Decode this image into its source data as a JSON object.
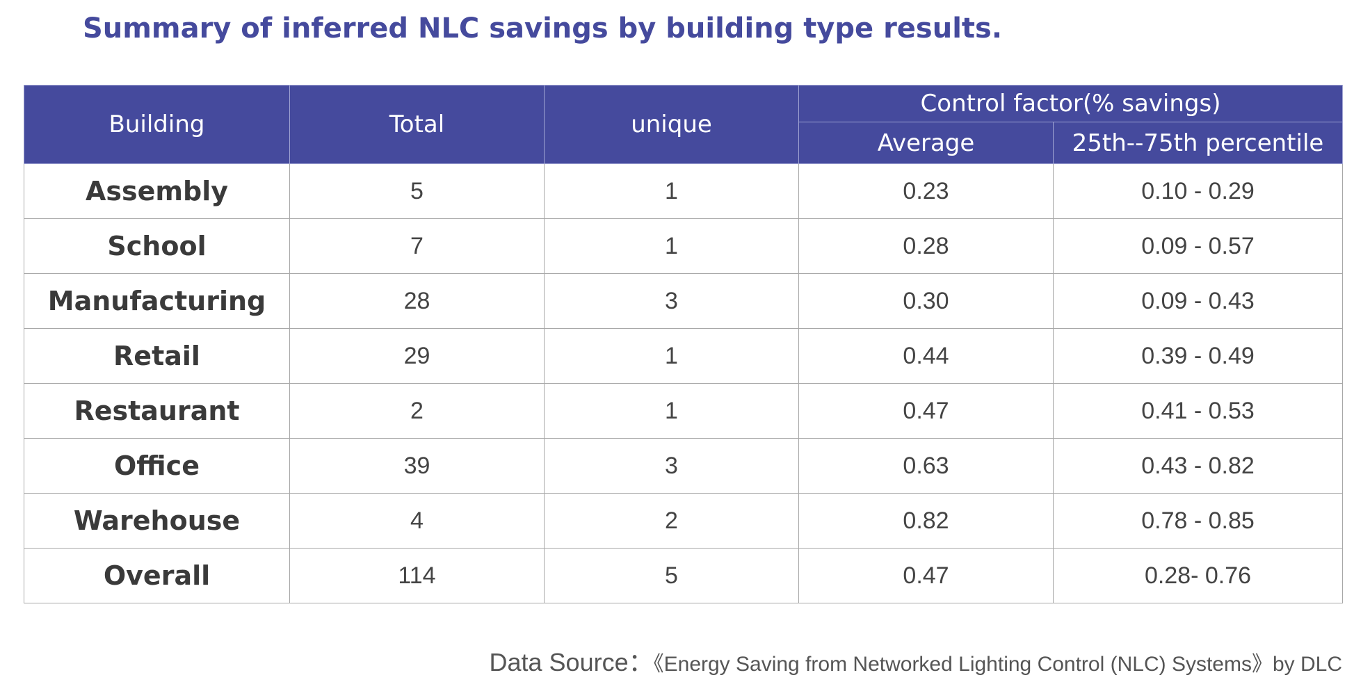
{
  "chart_data": {
    "type": "table",
    "title": "Summary of inferred NLC savings by building type results.",
    "columns": {
      "building": "Building",
      "total": "Total",
      "unique": "unique",
      "group": "Control factor(% savings)",
      "average": "Average",
      "percentile": "25th--75th  percentile"
    },
    "rows": [
      {
        "building": "Assembly",
        "total": "5",
        "unique": "1",
        "average": "0.23",
        "percentile": "0.10 - 0.29"
      },
      {
        "building": "School",
        "total": "7",
        "unique": "1",
        "average": "0.28",
        "percentile": "0.09 - 0.57"
      },
      {
        "building": "Manufacturing",
        "total": "28",
        "unique": "3",
        "average": "0.30",
        "percentile": "0.09 - 0.43"
      },
      {
        "building": "Retail",
        "total": "29",
        "unique": "1",
        "average": "0.44",
        "percentile": "0.39 - 0.49"
      },
      {
        "building": "Restaurant",
        "total": "2",
        "unique": "1",
        "average": "0.47",
        "percentile": "0.41 - 0.53"
      },
      {
        "building": "Office",
        "total": "39",
        "unique": "3",
        "average": "0.63",
        "percentile": "0.43 - 0.82"
      },
      {
        "building": "Warehouse",
        "total": "4",
        "unique": "2",
        "average": "0.82",
        "percentile": "0.78 - 0.85"
      },
      {
        "building": "Overall",
        "total": "114",
        "unique": "5",
        "average": "0.47",
        "percentile": "0.28- 0.76"
      }
    ],
    "source_label": "Data Source：",
    "source_text": "《Energy Saving from Networked Lighting Control (NLC) Systems》by DLC",
    "header_color": "#454a9d",
    "title_color": "#454a9d"
  }
}
